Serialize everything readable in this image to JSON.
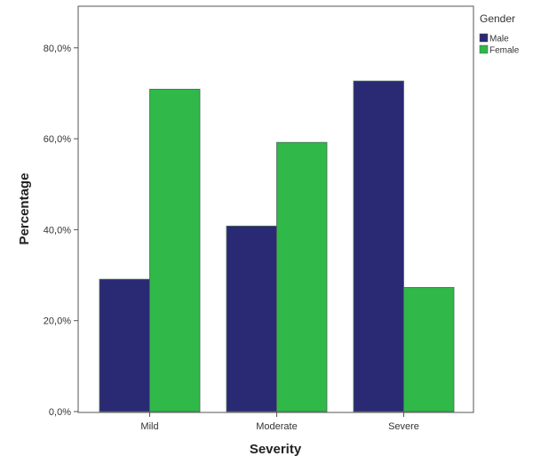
{
  "chart_data": {
    "type": "bar",
    "title": "",
    "xlabel": "Severity",
    "ylabel": "Percentage",
    "categories": [
      "Mild",
      "Moderate",
      "Severe"
    ],
    "series": [
      {
        "name": "Male",
        "color": "#2a2a74",
        "values": [
          29.1,
          40.8,
          72.7
        ]
      },
      {
        "name": "Female",
        "color": "#30b848",
        "values": [
          70.9,
          59.2,
          27.3
        ]
      }
    ],
    "ylim": [
      0,
      88.9
    ],
    "yticks": [
      0,
      20,
      40,
      60,
      80
    ],
    "ytick_labels": [
      "0,0%",
      "20,0%",
      "40,0%",
      "60,0%",
      "80,0%"
    ],
    "legend": {
      "title": "Gender",
      "placement": "right"
    },
    "grid": false
  }
}
